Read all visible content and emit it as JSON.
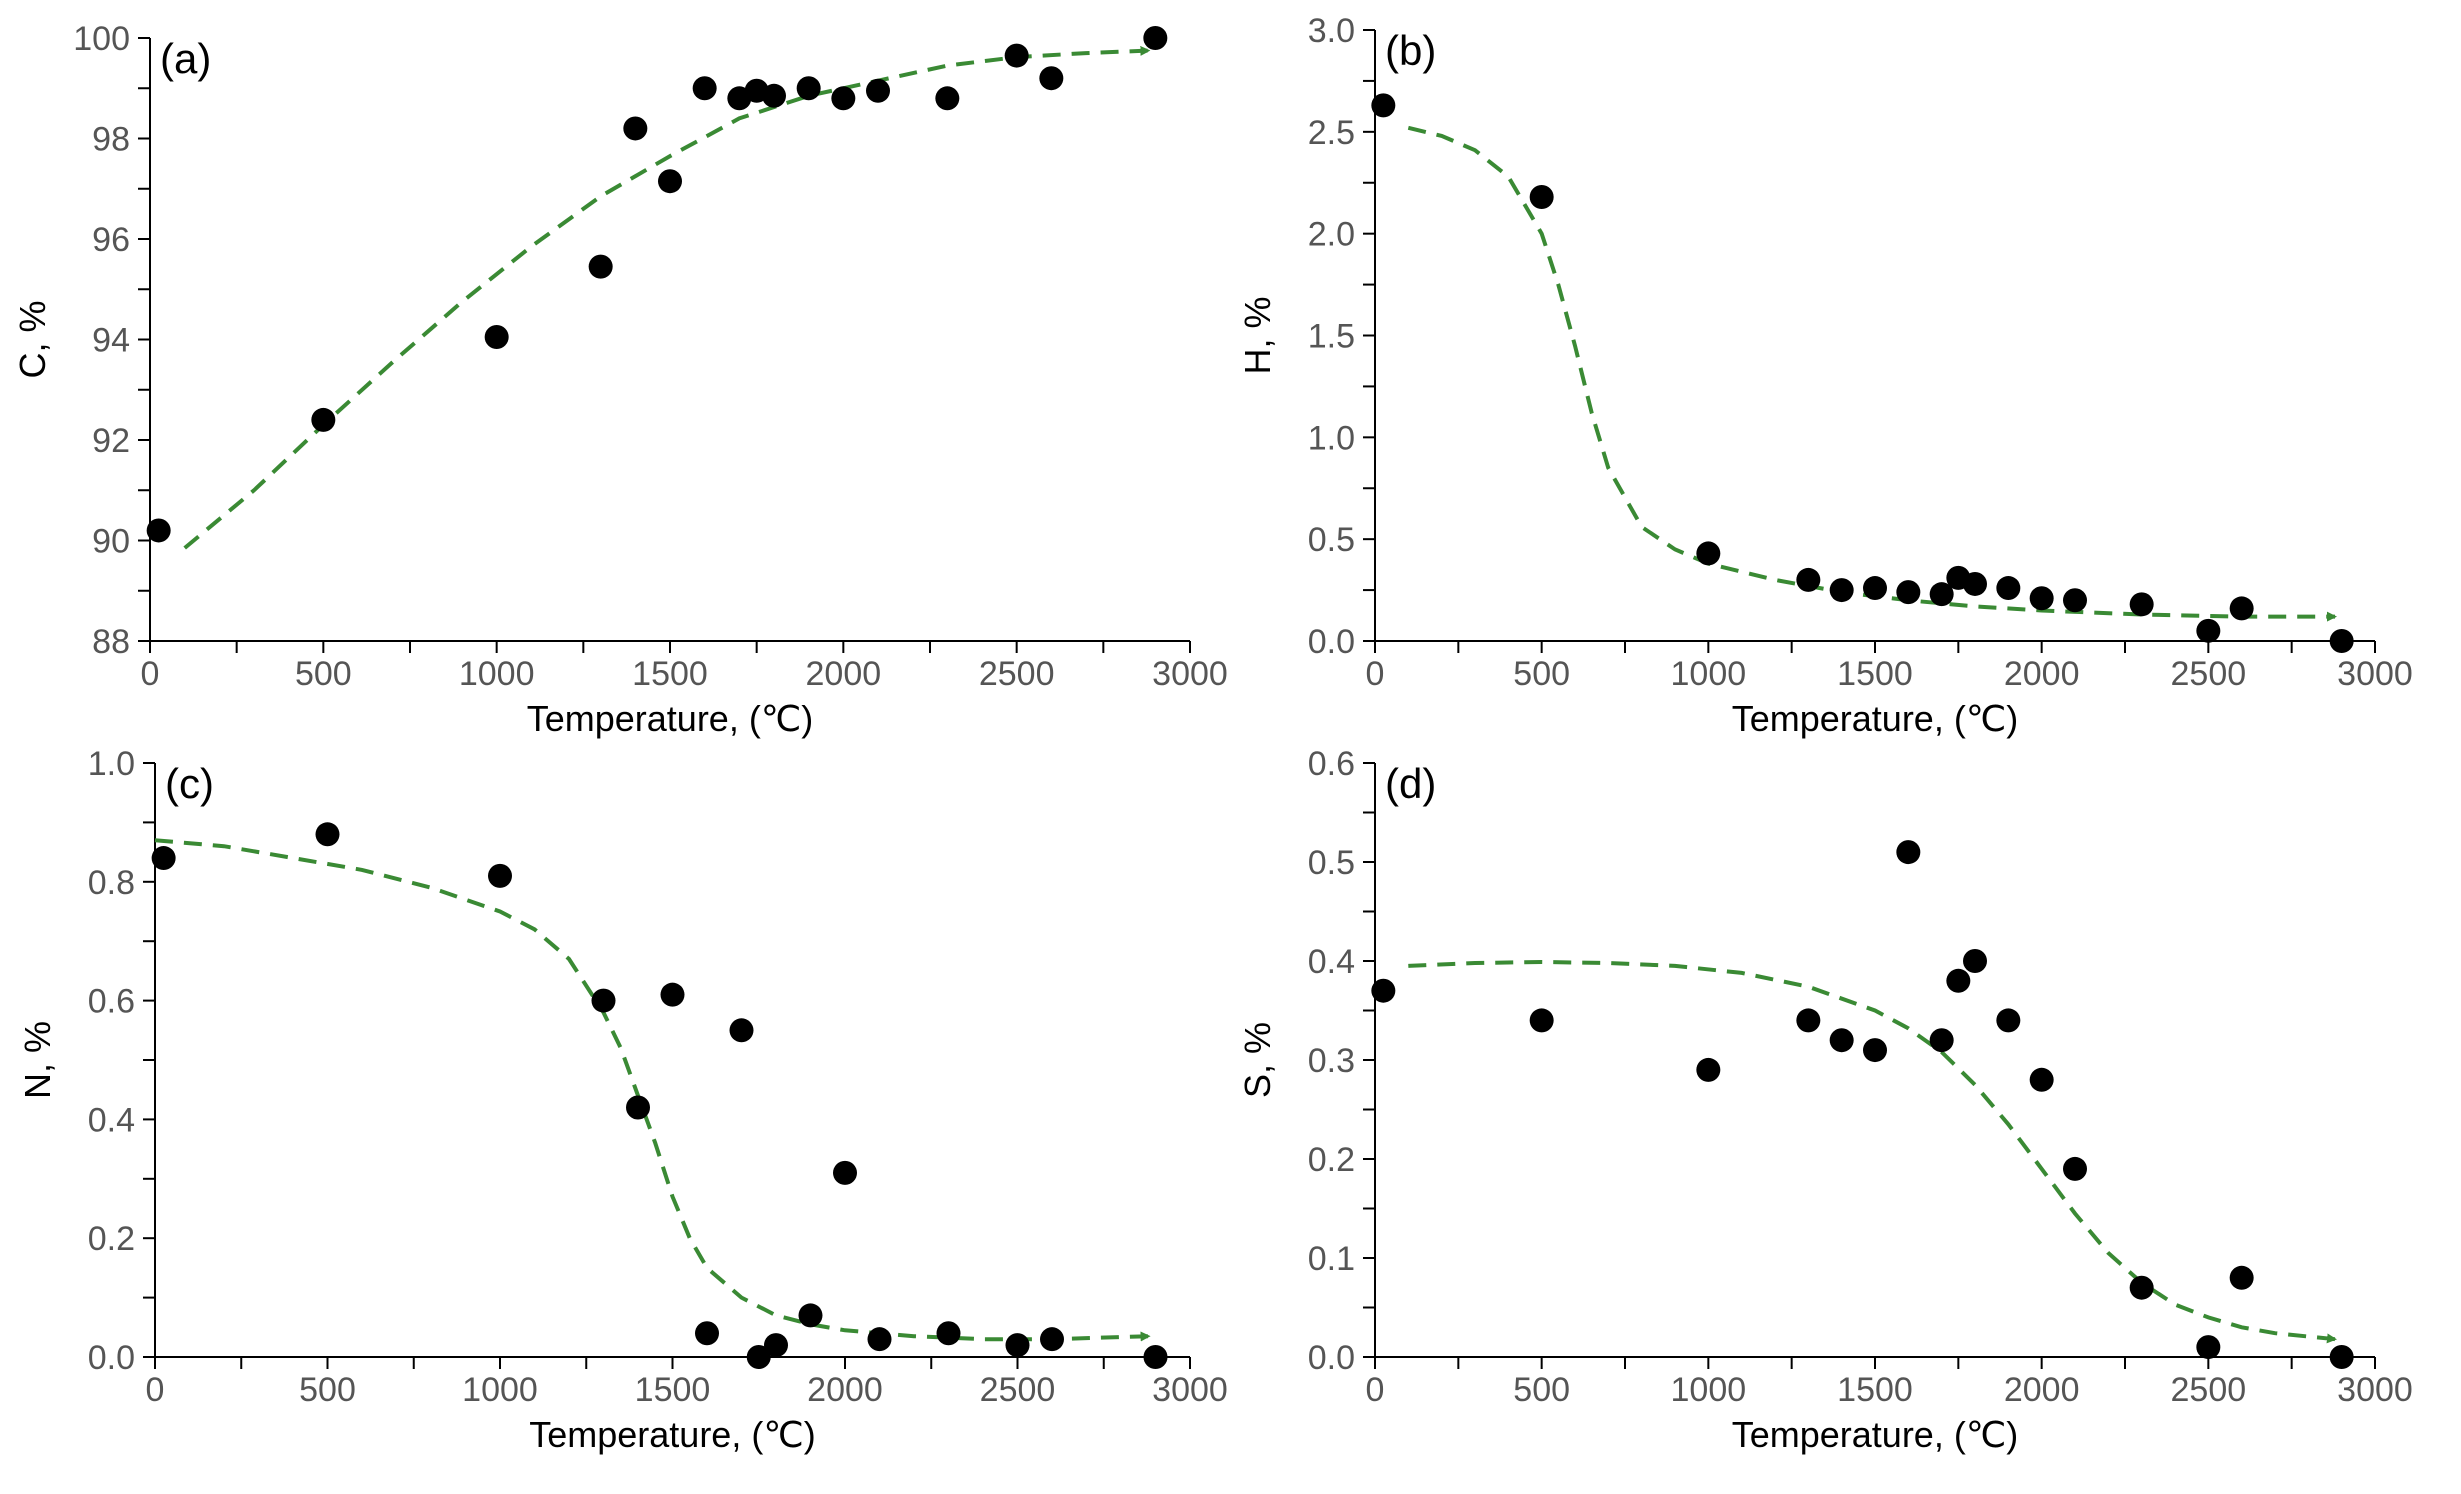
{
  "colors": {
    "points": "#000000",
    "fit": "#3a8a34",
    "axis": "#000000",
    "tick_label": "#555555"
  },
  "chart_data": [
    {
      "type": "scatter",
      "panel_label": "(a)",
      "xlabel": "Temperature, (℃)",
      "ylabel": "C, %",
      "xlim": [
        0,
        3000
      ],
      "ylim": [
        88,
        100
      ],
      "xticks": [
        "0",
        "500",
        "1000",
        "1500",
        "2000",
        "2500",
        "3000"
      ],
      "yticks": [
        "88",
        "90",
        "92",
        "94",
        "96",
        "98",
        "100"
      ],
      "points": [
        [
          25,
          90.2
        ],
        [
          500,
          92.4
        ],
        [
          1000,
          94.05
        ],
        [
          1300,
          95.45
        ],
        [
          1400,
          98.2
        ],
        [
          1500,
          97.15
        ],
        [
          1600,
          99.0
        ],
        [
          1700,
          98.8
        ],
        [
          1750,
          98.95
        ],
        [
          1800,
          98.85
        ],
        [
          1900,
          99.0
        ],
        [
          2000,
          98.8
        ],
        [
          2100,
          98.95
        ],
        [
          2300,
          98.8
        ],
        [
          2500,
          99.65
        ],
        [
          2600,
          99.2
        ],
        [
          2900,
          100.0
        ]
      ],
      "fit": [
        [
          100,
          89.85
        ],
        [
          300,
          91.0
        ],
        [
          500,
          92.3
        ],
        [
          700,
          93.55
        ],
        [
          900,
          94.75
        ],
        [
          1100,
          95.85
        ],
        [
          1300,
          96.85
        ],
        [
          1500,
          97.65
        ],
        [
          1700,
          98.4
        ],
        [
          1900,
          98.85
        ],
        [
          2100,
          99.15
        ],
        [
          2300,
          99.45
        ],
        [
          2500,
          99.62
        ],
        [
          2700,
          99.7
        ],
        [
          2880,
          99.75
        ]
      ]
    },
    {
      "type": "scatter",
      "panel_label": "(b)",
      "xlabel": "Temperature, (℃)",
      "ylabel": "H, %",
      "xlim": [
        0,
        3000
      ],
      "ylim": [
        0,
        3.0
      ],
      "xticks": [
        "0",
        "500",
        "1000",
        "1500",
        "2000",
        "2500",
        "3000"
      ],
      "yticks": [
        "0.0",
        "0.5",
        "1.0",
        "1.5",
        "2.0",
        "2.5",
        "3.0"
      ],
      "points": [
        [
          25,
          2.63
        ],
        [
          500,
          2.18
        ],
        [
          1000,
          0.43
        ],
        [
          1300,
          0.3
        ],
        [
          1400,
          0.25
        ],
        [
          1500,
          0.26
        ],
        [
          1600,
          0.24
        ],
        [
          1700,
          0.23
        ],
        [
          1750,
          0.31
        ],
        [
          1800,
          0.28
        ],
        [
          1900,
          0.26
        ],
        [
          2000,
          0.21
        ],
        [
          2100,
          0.2
        ],
        [
          2300,
          0.18
        ],
        [
          2500,
          0.05
        ],
        [
          2600,
          0.16
        ],
        [
          2900,
          0.0
        ]
      ],
      "fit": [
        [
          100,
          2.52
        ],
        [
          200,
          2.48
        ],
        [
          300,
          2.41
        ],
        [
          400,
          2.28
        ],
        [
          500,
          2.0
        ],
        [
          550,
          1.75
        ],
        [
          600,
          1.45
        ],
        [
          650,
          1.12
        ],
        [
          700,
          0.85
        ],
        [
          800,
          0.56
        ],
        [
          900,
          0.45
        ],
        [
          1000,
          0.38
        ],
        [
          1200,
          0.3
        ],
        [
          1400,
          0.24
        ],
        [
          1600,
          0.2
        ],
        [
          1800,
          0.17
        ],
        [
          2000,
          0.15
        ],
        [
          2300,
          0.13
        ],
        [
          2600,
          0.12
        ],
        [
          2880,
          0.12
        ]
      ]
    },
    {
      "type": "scatter",
      "panel_label": "(c)",
      "xlabel": "Temperature, (℃)",
      "ylabel": "N, %",
      "xlim": [
        0,
        3000
      ],
      "ylim": [
        0,
        1.0
      ],
      "xticks": [
        "0",
        "500",
        "1000",
        "1500",
        "2000",
        "2500",
        "3000"
      ],
      "yticks": [
        "0.0",
        "0.2",
        "0.4",
        "0.6",
        "0.8",
        "1.0"
      ],
      "points": [
        [
          25,
          0.84
        ],
        [
          500,
          0.88
        ],
        [
          1000,
          0.81
        ],
        [
          1300,
          0.6
        ],
        [
          1400,
          0.42
        ],
        [
          1500,
          0.61
        ],
        [
          1600,
          0.04
        ],
        [
          1700,
          0.55
        ],
        [
          1750,
          0.0
        ],
        [
          1800,
          0.02
        ],
        [
          1900,
          0.07
        ],
        [
          2000,
          0.31
        ],
        [
          2100,
          0.03
        ],
        [
          2300,
          0.04
        ],
        [
          2500,
          0.02
        ],
        [
          2600,
          0.03
        ],
        [
          2900,
          0.0
        ]
      ],
      "fit": [
        [
          0,
          0.87
        ],
        [
          200,
          0.86
        ],
        [
          400,
          0.84
        ],
        [
          600,
          0.82
        ],
        [
          800,
          0.79
        ],
        [
          1000,
          0.75
        ],
        [
          1100,
          0.72
        ],
        [
          1200,
          0.67
        ],
        [
          1300,
          0.58
        ],
        [
          1350,
          0.52
        ],
        [
          1400,
          0.44
        ],
        [
          1450,
          0.36
        ],
        [
          1500,
          0.27
        ],
        [
          1550,
          0.2
        ],
        [
          1600,
          0.15
        ],
        [
          1700,
          0.1
        ],
        [
          1800,
          0.07
        ],
        [
          1900,
          0.055
        ],
        [
          2000,
          0.045
        ],
        [
          2200,
          0.035
        ],
        [
          2400,
          0.03
        ],
        [
          2600,
          0.03
        ],
        [
          2880,
          0.035
        ]
      ]
    },
    {
      "type": "scatter",
      "panel_label": "(d)",
      "xlabel": "Temperature, (℃)",
      "ylabel": "S, %",
      "xlim": [
        0,
        3000
      ],
      "ylim": [
        0,
        0.6
      ],
      "xticks": [
        "0",
        "500",
        "1000",
        "1500",
        "2000",
        "2500",
        "3000"
      ],
      "yticks": [
        "0.0",
        "0.1",
        "0.2",
        "0.3",
        "0.4",
        "0.5",
        "0.6"
      ],
      "points": [
        [
          25,
          0.37
        ],
        [
          500,
          0.34
        ],
        [
          1000,
          0.29
        ],
        [
          1300,
          0.34
        ],
        [
          1400,
          0.32
        ],
        [
          1500,
          0.31
        ],
        [
          1600,
          0.51
        ],
        [
          1700,
          0.32
        ],
        [
          1750,
          0.38
        ],
        [
          1800,
          0.4
        ],
        [
          1900,
          0.34
        ],
        [
          2000,
          0.28
        ],
        [
          2100,
          0.19
        ],
        [
          2300,
          0.07
        ],
        [
          2500,
          0.01
        ],
        [
          2600,
          0.08
        ],
        [
          2900,
          0.0
        ]
      ],
      "fit": [
        [
          100,
          0.395
        ],
        [
          300,
          0.398
        ],
        [
          500,
          0.399
        ],
        [
          700,
          0.398
        ],
        [
          900,
          0.395
        ],
        [
          1100,
          0.388
        ],
        [
          1300,
          0.374
        ],
        [
          1500,
          0.35
        ],
        [
          1600,
          0.332
        ],
        [
          1700,
          0.308
        ],
        [
          1800,
          0.275
        ],
        [
          1900,
          0.235
        ],
        [
          2000,
          0.19
        ],
        [
          2100,
          0.145
        ],
        [
          2200,
          0.105
        ],
        [
          2300,
          0.075
        ],
        [
          2400,
          0.053
        ],
        [
          2500,
          0.04
        ],
        [
          2600,
          0.03
        ],
        [
          2700,
          0.024
        ],
        [
          2880,
          0.018
        ]
      ]
    }
  ]
}
